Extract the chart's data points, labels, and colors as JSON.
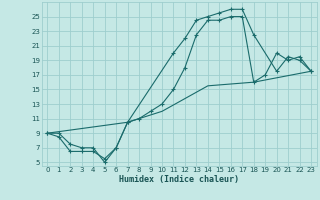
{
  "xlabel": "Humidex (Indice chaleur)",
  "bg_color": "#c5e8e5",
  "grid_color": "#9ecece",
  "line_color": "#1a6b6b",
  "xlim": [
    -0.5,
    23.5
  ],
  "ylim": [
    4.5,
    27
  ],
  "yticks": [
    5,
    7,
    9,
    11,
    13,
    15,
    17,
    19,
    21,
    23,
    25
  ],
  "xticks": [
    0,
    1,
    2,
    3,
    4,
    5,
    6,
    7,
    8,
    9,
    10,
    11,
    12,
    13,
    14,
    15,
    16,
    17,
    18,
    19,
    20,
    21,
    22,
    23
  ],
  "line1_x": [
    0,
    1,
    2,
    3,
    4,
    5,
    6,
    7,
    11,
    12,
    13,
    14,
    15,
    16,
    17,
    18,
    20,
    21,
    22,
    23
  ],
  "line1_y": [
    9,
    8.5,
    6.5,
    6.5,
    6.5,
    5.5,
    7.0,
    10.5,
    20,
    22,
    24.5,
    25,
    25.5,
    26,
    26,
    22.5,
    17.5,
    19.5,
    19.0,
    17.5
  ],
  "line2_x": [
    0,
    1,
    2,
    3,
    4,
    5,
    6,
    7,
    8,
    9,
    10,
    11,
    12,
    13,
    14,
    15,
    16,
    17,
    18,
    19,
    20,
    21,
    22,
    23
  ],
  "line2_y": [
    9,
    9,
    7.5,
    7,
    7,
    5,
    7.0,
    10.5,
    11,
    12,
    13,
    15,
    18,
    22.5,
    24.5,
    24.5,
    25,
    25,
    16,
    17,
    20,
    19.0,
    19.5,
    17.5
  ],
  "line3_x": [
    0,
    7,
    10,
    14,
    18,
    23
  ],
  "line3_y": [
    9,
    10.5,
    12,
    15.5,
    16,
    17.5
  ]
}
